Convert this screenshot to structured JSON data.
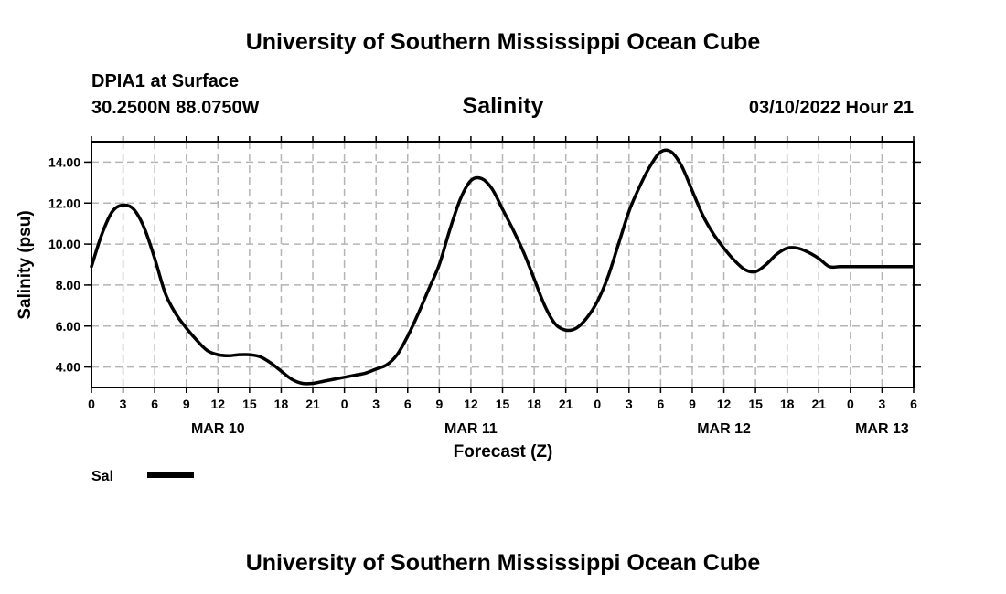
{
  "header": {
    "title": "University of Southern Mississippi Ocean Cube",
    "station": "DPIA1 at Surface",
    "coords": "30.2500N  88.0750W",
    "timestamp": "03/10/2022 Hour 21"
  },
  "footer": {
    "title": "University of Southern Mississippi Ocean Cube"
  },
  "legend": {
    "label": "Sal",
    "color": "#000000"
  },
  "chart_data": {
    "type": "line",
    "title": "Salinity",
    "xlabel": "Forecast (Z)",
    "ylabel": "Salinity (psu)",
    "xlim": [
      0,
      78
    ],
    "ylim": [
      3.0,
      15.0
    ],
    "x_tick_step_hours": 3,
    "x_tick_labels": [
      "0",
      "3",
      "6",
      "9",
      "12",
      "15",
      "18",
      "21",
      "0",
      "3",
      "6",
      "9",
      "12",
      "15",
      "18",
      "21",
      "0",
      "3",
      "6",
      "9",
      "12",
      "15",
      "18",
      "21",
      "0",
      "3",
      "6"
    ],
    "y_ticks": [
      4.0,
      6.0,
      8.0,
      10.0,
      12.0,
      14.0
    ],
    "y_tick_labels": [
      "4.00",
      "6.00",
      "8.00",
      "10.00",
      "12.00",
      "14.00"
    ],
    "date_labels": [
      {
        "hour": 12,
        "label": "MAR 10"
      },
      {
        "hour": 36,
        "label": "MAR 11"
      },
      {
        "hour": 60,
        "label": "MAR 12"
      },
      {
        "hour": 75,
        "label": "MAR 13"
      }
    ],
    "grid": true,
    "series": [
      {
        "name": "Sal",
        "x": [
          0,
          1,
          2,
          3,
          4,
          5,
          6,
          7,
          8,
          9,
          10,
          11,
          12,
          13,
          14,
          15,
          16,
          17,
          18,
          19,
          20,
          21,
          22,
          23,
          24,
          25,
          26,
          27,
          28,
          29,
          30,
          31,
          32,
          33,
          34,
          35,
          36,
          37,
          38,
          39,
          40,
          41,
          42,
          43,
          44,
          45,
          46,
          47,
          48,
          49,
          50,
          51,
          52,
          53,
          54,
          55,
          56,
          57,
          58,
          59,
          60,
          61,
          62,
          63,
          64,
          65,
          66,
          67,
          68,
          69,
          70,
          71,
          72,
          73,
          74,
          75,
          76,
          77,
          78
        ],
        "values": [
          8.9,
          10.5,
          11.6,
          11.9,
          11.7,
          10.8,
          9.3,
          7.6,
          6.6,
          5.9,
          5.3,
          4.8,
          4.6,
          4.55,
          4.6,
          4.6,
          4.5,
          4.2,
          3.8,
          3.4,
          3.2,
          3.2,
          3.3,
          3.4,
          3.5,
          3.6,
          3.7,
          3.9,
          4.1,
          4.6,
          5.5,
          6.6,
          7.8,
          9.0,
          10.7,
          12.2,
          13.1,
          13.2,
          12.7,
          11.7,
          10.7,
          9.6,
          8.3,
          7.0,
          6.1,
          5.8,
          5.9,
          6.4,
          7.2,
          8.4,
          10.0,
          11.6,
          12.8,
          13.8,
          14.5,
          14.5,
          13.8,
          12.6,
          11.4,
          10.5,
          9.8,
          9.2,
          8.75,
          8.65,
          9.0,
          9.5,
          9.8,
          9.8,
          9.6,
          9.3,
          8.9,
          8.9,
          8.9,
          8.9,
          8.9,
          8.9,
          8.9,
          8.9,
          8.9
        ]
      }
    ]
  }
}
